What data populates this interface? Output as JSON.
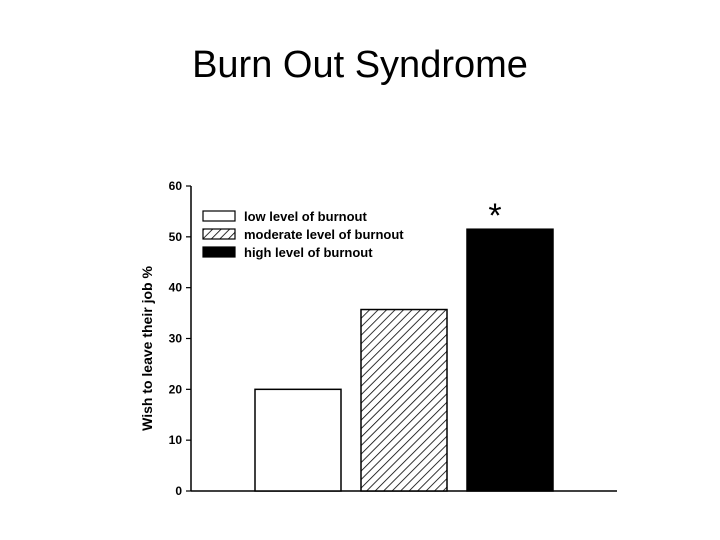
{
  "slide": {
    "title": "Burn Out Syndrome"
  },
  "chart_data": {
    "type": "bar",
    "title": "",
    "xlabel": "",
    "ylabel": "Wish to leave their job %",
    "ylim": [
      0,
      60
    ],
    "yticks": [
      0,
      10,
      20,
      30,
      40,
      50,
      60
    ],
    "grid": false,
    "legend_position": "top-left",
    "categories": [
      "low level of burnout",
      "moderate level of burnout",
      "high level of burnout"
    ],
    "values": [
      20,
      35.7,
      51.5
    ],
    "series_styles": [
      "white",
      "hatched",
      "black"
    ],
    "annotation": "*"
  }
}
